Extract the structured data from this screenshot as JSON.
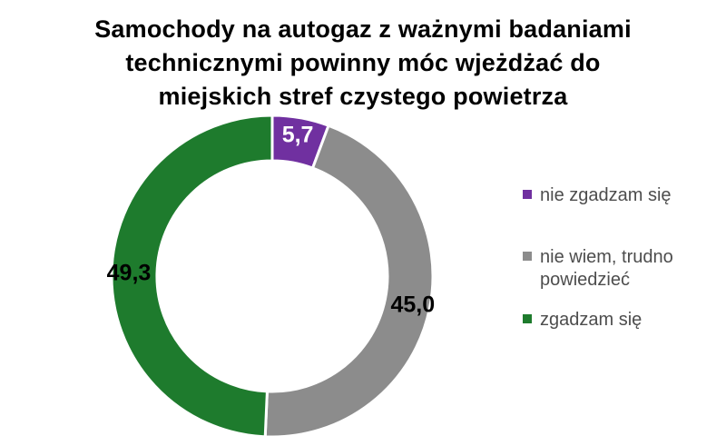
{
  "title": {
    "full": "Samochody na autogaz z ważnymi badaniami technicznymi powinny móc wjeżdżać do miejskich stref czystego powietrza",
    "lines": [
      "Samochody na autogaz z ważnymi badaniami",
      "technicznymi powinny móc wjeżdżać do",
      "miejskich stref czystego powietrza"
    ]
  },
  "chart_data": {
    "type": "pie",
    "subtype": "donut",
    "title": "Samochody na autogaz z ważnymi badaniami technicznymi powinny móc wjeżdżać do miejskich stref czystego powietrza",
    "values_are": "percent",
    "total": 100.0,
    "direction": "clockwise",
    "start_angle_deg": 0,
    "legend_position": "right",
    "decimal_separator": ",",
    "slice_border_color": "#FFFFFF",
    "series": [
      {
        "name": "nie zgadzam się",
        "value": 5.7,
        "value_label": "5,7",
        "color": "#7030A0",
        "value_label_color": "#FFFFFF"
      },
      {
        "name": "nie wiem, trudno powiedzieć",
        "value": 45.0,
        "value_label": "45,0",
        "color": "#8C8C8C",
        "value_label_color": "#000000"
      },
      {
        "name": "zgadzam się",
        "value": 49.3,
        "value_label": "49,3",
        "color": "#1E7B2D",
        "value_label_color": "#000000"
      }
    ]
  }
}
